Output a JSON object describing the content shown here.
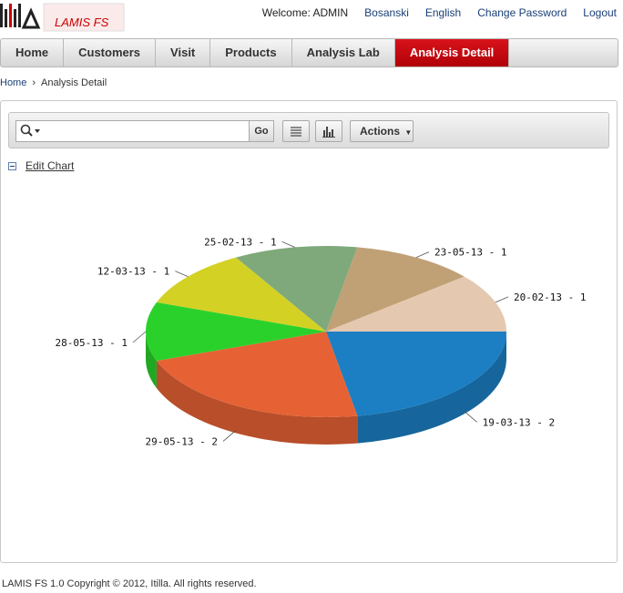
{
  "header": {
    "welcome": "Welcome: ADMIN",
    "links": [
      "Bosanski",
      "English",
      "Change Password",
      "Logout"
    ]
  },
  "tabs": [
    "Home",
    "Customers",
    "Visit",
    "Products",
    "Analysis Lab",
    "Analysis Detail"
  ],
  "active_tab": "Analysis Detail",
  "breadcrumb": {
    "home": "Home",
    "separator": "›",
    "current": "Analysis Detail"
  },
  "toolbar": {
    "search_placeholder": "",
    "go_label": "Go",
    "actions_label": "Actions"
  },
  "edit_chart_label": "Edit Chart",
  "footer": "LAMIS FS 1.0 Copyright © 2012, Itilla. All rights reserved.",
  "chart_data": {
    "type": "pie",
    "slices": [
      {
        "label": "19-03-13 - 2",
        "value": 2,
        "color": "#1c7fc4"
      },
      {
        "label": "29-05-13 - 2",
        "value": 2,
        "color": "#e66234"
      },
      {
        "label": "28-05-13 - 1",
        "value": 1,
        "color": "#2bd12b"
      },
      {
        "label": "12-03-13 - 1",
        "value": 1,
        "color": "#d3d124"
      },
      {
        "label": "25-02-13 - 1",
        "value": 1,
        "color": "#7fa97a"
      },
      {
        "label": "23-05-13 - 1",
        "value": 1,
        "color": "#c0a075"
      },
      {
        "label": "20-02-13 - 1",
        "value": 1,
        "color": "#e4c8af"
      }
    ]
  }
}
